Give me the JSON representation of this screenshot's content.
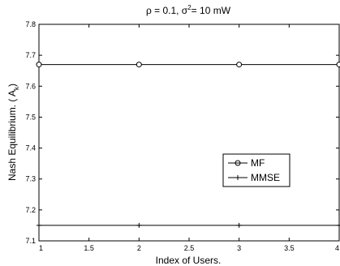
{
  "chart_data": {
    "type": "line",
    "title": "ρ = 0.1, σ²= 10 mW",
    "title_parts": {
      "rho": "ρ = 0.1, σ",
      "sup": "2",
      "rest": "= 10 mW"
    },
    "xlabel": "Index of Users.",
    "ylabel": "Nash Equilibrium. ( A",
    "ylabel_sub": "k",
    "ylabel_end": ")",
    "xlim": [
      1,
      4
    ],
    "ylim": [
      7.1,
      7.8
    ],
    "x_ticks": [
      "1",
      "1.5",
      "2",
      "2.5",
      "3",
      "3.5",
      "4"
    ],
    "y_ticks": [
      "7.1",
      "7.2",
      "7.3",
      "7.4",
      "7.5",
      "7.6",
      "7.7",
      "7.8"
    ],
    "grid": false,
    "legend_position": "right",
    "series": [
      {
        "name": "MF",
        "marker": "circle",
        "x": [
          1,
          2,
          3,
          4
        ],
        "y": [
          7.67,
          7.67,
          7.67,
          7.67
        ]
      },
      {
        "name": "MMSE",
        "marker": "plus",
        "x": [
          1,
          2,
          3,
          4
        ],
        "y": [
          7.15,
          7.15,
          7.15,
          7.15
        ]
      }
    ]
  }
}
